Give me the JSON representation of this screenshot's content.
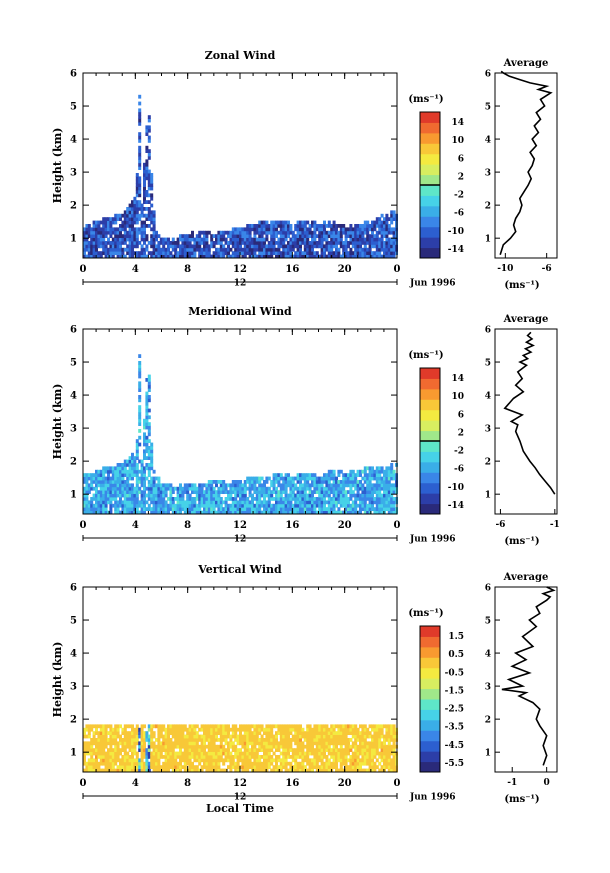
{
  "colors": {
    "background": "#ffffff",
    "frame": "#000000",
    "colormap": [
      "#2a2a7a",
      "#2c3ea8",
      "#2c5fd0",
      "#3a86e8",
      "#3aaee8",
      "#46d2e8",
      "#5ee6c8",
      "#a0e88a",
      "#d8ee60",
      "#f4ea40",
      "#f8c838",
      "#f89a30",
      "#f06a30",
      "#e03a2a"
    ]
  },
  "chart_data": [
    {
      "type": "heatmap",
      "title": "Zonal Wind",
      "ylabel": "Height (km)",
      "xlabel": "",
      "xlim": [
        0,
        24
      ],
      "ylim": [
        0.4,
        6
      ],
      "xticks": [
        "0",
        "4",
        "8",
        "12",
        "16",
        "20",
        "0"
      ],
      "yticks": [
        "1",
        "2",
        "3",
        "4",
        "5",
        "6"
      ],
      "date_axis": {
        "center": "12",
        "date": "Jun 1996"
      },
      "colorbar": {
        "unit": "(ms⁻¹)",
        "ticks": [
          "14",
          "10",
          "6",
          "2",
          "-2",
          "-6",
          "-10",
          "-14"
        ],
        "range": [
          -15,
          15
        ],
        "zero_line_value": 0
      },
      "cloud_top": [
        [
          0,
          1.3
        ],
        [
          1,
          1.5
        ],
        [
          2,
          1.6
        ],
        [
          3,
          1.7
        ],
        [
          3.5,
          2.0
        ],
        [
          4,
          2.3
        ],
        [
          4.2,
          5.6
        ],
        [
          4.4,
          2.0
        ],
        [
          4.8,
          4.7
        ],
        [
          5,
          4.6
        ],
        [
          5.2,
          2.2
        ],
        [
          5.6,
          1.1
        ],
        [
          6,
          1.0
        ],
        [
          7,
          1.0
        ],
        [
          8,
          1.1
        ],
        [
          9,
          1.2
        ],
        [
          10,
          1.1
        ],
        [
          11,
          1.2
        ],
        [
          12,
          1.3
        ],
        [
          13,
          1.4
        ],
        [
          14,
          1.5
        ],
        [
          15,
          1.5
        ],
        [
          16,
          1.4
        ],
        [
          17,
          1.5
        ],
        [
          18,
          1.4
        ],
        [
          19,
          1.5
        ],
        [
          20,
          1.3
        ],
        [
          21,
          1.4
        ],
        [
          22,
          1.5
        ],
        [
          23,
          1.7
        ],
        [
          24,
          1.8
        ]
      ],
      "field_range": [
        -14,
        -7
      ],
      "average": {
        "title": "Average",
        "xlabel": "(ms⁻¹)",
        "xlim": [
          -11,
          -5
        ],
        "xticks": [
          "-10",
          "-6"
        ],
        "x": [
          -10.5,
          -10.2,
          -9.5,
          -9.0,
          -9.2,
          -9.0,
          -8.6,
          -8.4,
          -8.6,
          -8.2,
          -7.8,
          -7.5,
          -7.8,
          -7.4,
          -7.2,
          -7.6,
          -7.0,
          -7.4,
          -6.8,
          -7.2,
          -6.6,
          -7.0,
          -6.2,
          -6.6,
          -5.6,
          -6.8,
          -6.0,
          -7.6,
          -8.6,
          -9.6,
          -10.2,
          -10.4
        ],
        "y": [
          0.5,
          0.8,
          1.0,
          1.2,
          1.4,
          1.6,
          1.8,
          2.0,
          2.2,
          2.4,
          2.6,
          2.8,
          3.0,
          3.2,
          3.4,
          3.6,
          3.8,
          4.0,
          4.2,
          4.4,
          4.6,
          4.8,
          5.0,
          5.2,
          5.4,
          5.5,
          5.6,
          5.7,
          5.8,
          5.9,
          6.0,
          6.05
        ]
      }
    },
    {
      "type": "heatmap",
      "title": "Meridional Wind",
      "ylabel": "Height (km)",
      "xlabel": "",
      "xlim": [
        0,
        24
      ],
      "ylim": [
        0.4,
        6
      ],
      "xticks": [
        "0",
        "4",
        "8",
        "12",
        "16",
        "20",
        "0"
      ],
      "yticks": [
        "1",
        "2",
        "3",
        "4",
        "5",
        "6"
      ],
      "date_axis": {
        "center": "12",
        "date": "Jun 1996"
      },
      "colorbar": {
        "unit": "(ms⁻¹)",
        "ticks": [
          "14",
          "10",
          "6",
          "2",
          "-2",
          "-6",
          "-10",
          "-14"
        ],
        "range": [
          -15,
          15
        ],
        "zero_line_value": 0
      },
      "cloud_top": [
        [
          0,
          1.6
        ],
        [
          1,
          1.7
        ],
        [
          2,
          1.8
        ],
        [
          3,
          1.9
        ],
        [
          3.8,
          2.2
        ],
        [
          4,
          2.0
        ],
        [
          4.2,
          5.6
        ],
        [
          4.4,
          2.0
        ],
        [
          4.8,
          4.7
        ],
        [
          5,
          4.5
        ],
        [
          5.2,
          1.7
        ],
        [
          6,
          1.3
        ],
        [
          7,
          1.2
        ],
        [
          8,
          1.3
        ],
        [
          9,
          1.3
        ],
        [
          10,
          1.4
        ],
        [
          11,
          1.3
        ],
        [
          12,
          1.4
        ],
        [
          13,
          1.5
        ],
        [
          14,
          1.5
        ],
        [
          15,
          1.6
        ],
        [
          16,
          1.5
        ],
        [
          17,
          1.6
        ],
        [
          18,
          1.5
        ],
        [
          19,
          1.7
        ],
        [
          20,
          1.6
        ],
        [
          21,
          1.7
        ],
        [
          22,
          1.8
        ],
        [
          23,
          1.8
        ],
        [
          24,
          1.9
        ]
      ],
      "field_range": [
        -9,
        -2
      ],
      "average": {
        "title": "Average",
        "xlabel": "(ms⁻¹)",
        "xlim": [
          -6.5,
          -0.8
        ],
        "xticks": [
          "-6",
          "-1"
        ],
        "x": [
          -1.0,
          -1.4,
          -1.9,
          -2.4,
          -2.8,
          -3.3,
          -3.9,
          -4.2,
          -4.6,
          -4.4,
          -5.0,
          -4.0,
          -5.6,
          -4.8,
          -3.9,
          -4.6,
          -4.0,
          -4.4,
          -3.6,
          -4.2,
          -3.5,
          -3.9,
          -3.2,
          -3.7,
          -3.0,
          -3.6,
          -3.1,
          -3.5,
          -3.2
        ],
        "y": [
          1.0,
          1.2,
          1.4,
          1.6,
          1.8,
          2.0,
          2.3,
          2.6,
          2.9,
          3.1,
          3.2,
          3.4,
          3.6,
          3.9,
          4.1,
          4.3,
          4.5,
          4.7,
          4.9,
          5.0,
          5.1,
          5.2,
          5.3,
          5.4,
          5.5,
          5.6,
          5.7,
          5.8,
          5.9
        ]
      }
    },
    {
      "type": "heatmap",
      "title": "Vertical Wind",
      "ylabel": "Height (km)",
      "xlabel": "Local Time",
      "xlim": [
        0,
        24
      ],
      "ylim": [
        0.4,
        6
      ],
      "xticks": [
        "0",
        "4",
        "8",
        "12",
        "16",
        "20",
        "0"
      ],
      "yticks": [
        "1",
        "2",
        "3",
        "4",
        "5",
        "6"
      ],
      "date_axis": {
        "center": "12",
        "date": "Jun 1996"
      },
      "colorbar": {
        "unit": "(ms⁻¹)",
        "ticks": [
          "1.5",
          "0.5",
          "-0.5",
          "-1.5",
          "-2.5",
          "-3.5",
          "-4.5",
          "-5.5"
        ],
        "range": [
          -6,
          2
        ],
        "zero_line_value": null
      },
      "cloud_top": [
        [
          0,
          1.8
        ],
        [
          24,
          1.8
        ]
      ],
      "field_range": [
        -0.5,
        0.3
      ],
      "average": {
        "title": "Average",
        "xlabel": "(ms⁻¹)",
        "xlim": [
          -1.5,
          0.3
        ],
        "xticks": [
          "-1",
          "0"
        ],
        "x": [
          -0.1,
          0.0,
          -0.1,
          0.0,
          -0.2,
          -0.3,
          -0.2,
          -0.4,
          -0.6,
          -0.8,
          -0.6,
          -1.3,
          -0.7,
          -1.1,
          -0.5,
          -1.0,
          -0.6,
          -0.9,
          -0.4,
          -0.7,
          -0.3,
          -0.5,
          -0.2,
          -0.3,
          0.0,
          0.1,
          -0.1,
          0.2,
          0.0
        ],
        "y": [
          0.6,
          0.9,
          1.2,
          1.5,
          1.8,
          2.0,
          2.3,
          2.5,
          2.6,
          2.7,
          2.8,
          2.9,
          3.0,
          3.2,
          3.4,
          3.6,
          3.8,
          4.0,
          4.2,
          4.5,
          4.8,
          5.0,
          5.2,
          5.4,
          5.6,
          5.7,
          5.8,
          5.9,
          6.0
        ]
      }
    }
  ]
}
